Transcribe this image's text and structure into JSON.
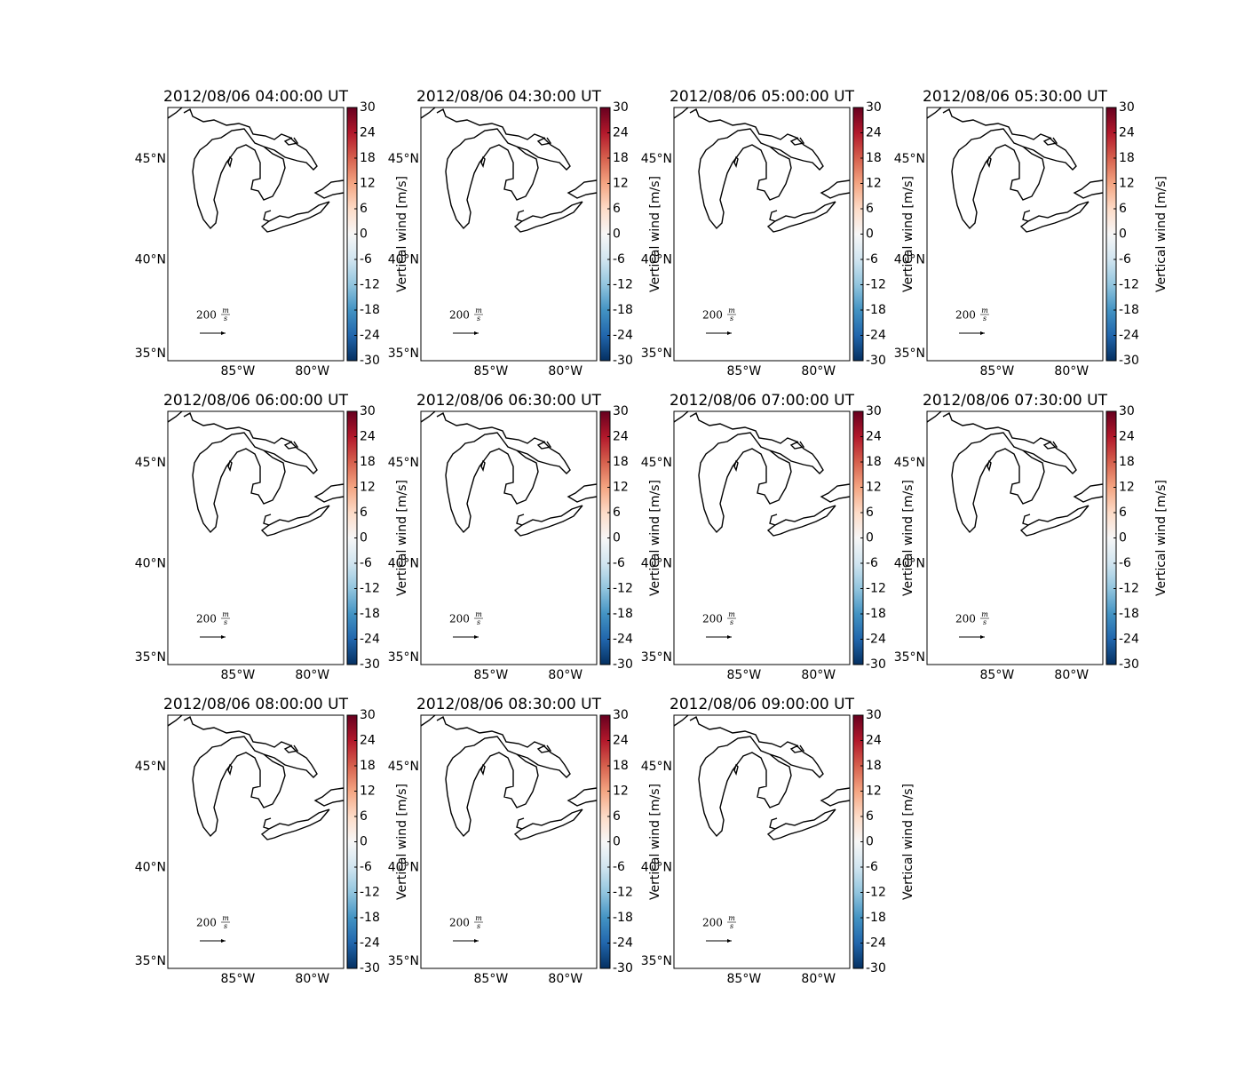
{
  "chart_data": [
    {
      "type": "map",
      "title": "2012/08/06 04:00:00 UT",
      "xlim": [
        -89.7,
        -77.9
      ],
      "ylim": [
        34.6,
        47.4
      ],
      "xticks": [
        {
          "value": -85,
          "label": "85°W"
        },
        {
          "value": -80,
          "label": "80°W"
        }
      ],
      "yticks": [
        {
          "value": 35,
          "label": "35°N"
        },
        {
          "value": 40,
          "label": "40°N"
        },
        {
          "value": 45,
          "label": "45°N"
        }
      ],
      "colorbar": {
        "label": "Vertical wind [m/s]",
        "lim": [
          -30,
          30
        ],
        "ticks": [
          -30,
          -24,
          -18,
          -12,
          -6,
          0,
          6,
          12,
          18,
          24,
          30
        ],
        "colors": [
          "#053061",
          "#2166ac",
          "#4393c3",
          "#92c5de",
          "#d1e5f0",
          "#f7f7f7",
          "#fddbc7",
          "#f4a582",
          "#d6604d",
          "#b2182b",
          "#67001f"
        ]
      },
      "quiver_key": {
        "value": 200,
        "numerator": "m",
        "denominator": "s"
      }
    },
    {
      "type": "map",
      "title": "2012/08/06 04:30:00 UT",
      "xlim": [
        -89.7,
        -77.9
      ],
      "ylim": [
        34.6,
        47.4
      ],
      "xticks": [
        {
          "value": -85,
          "label": "85°W"
        },
        {
          "value": -80,
          "label": "80°W"
        }
      ],
      "yticks": [
        {
          "value": 35,
          "label": "35°N"
        },
        {
          "value": 40,
          "label": "40°N"
        },
        {
          "value": 45,
          "label": "45°N"
        }
      ],
      "colorbar": {
        "label": "Vertical wind [m/s]",
        "lim": [
          -30,
          30
        ],
        "ticks": [
          -30,
          -24,
          -18,
          -12,
          -6,
          0,
          6,
          12,
          18,
          24,
          30
        ],
        "colors": [
          "#053061",
          "#2166ac",
          "#4393c3",
          "#92c5de",
          "#d1e5f0",
          "#f7f7f7",
          "#fddbc7",
          "#f4a582",
          "#d6604d",
          "#b2182b",
          "#67001f"
        ]
      },
      "quiver_key": {
        "value": 200,
        "numerator": "m",
        "denominator": "s"
      }
    },
    {
      "type": "map",
      "title": "2012/08/06 05:00:00 UT",
      "xlim": [
        -89.7,
        -77.9
      ],
      "ylim": [
        34.6,
        47.4
      ],
      "xticks": [
        {
          "value": -85,
          "label": "85°W"
        },
        {
          "value": -80,
          "label": "80°W"
        }
      ],
      "yticks": [
        {
          "value": 35,
          "label": "35°N"
        },
        {
          "value": 40,
          "label": "40°N"
        },
        {
          "value": 45,
          "label": "45°N"
        }
      ],
      "colorbar": {
        "label": "Vertical wind [m/s]",
        "lim": [
          -30,
          30
        ],
        "ticks": [
          -30,
          -24,
          -18,
          -12,
          -6,
          0,
          6,
          12,
          18,
          24,
          30
        ],
        "colors": [
          "#053061",
          "#2166ac",
          "#4393c3",
          "#92c5de",
          "#d1e5f0",
          "#f7f7f7",
          "#fddbc7",
          "#f4a582",
          "#d6604d",
          "#b2182b",
          "#67001f"
        ]
      },
      "quiver_key": {
        "value": 200,
        "numerator": "m",
        "denominator": "s"
      }
    },
    {
      "type": "map",
      "title": "2012/08/06 05:30:00 UT",
      "xlim": [
        -89.7,
        -77.9
      ],
      "ylim": [
        34.6,
        47.4
      ],
      "xticks": [
        {
          "value": -85,
          "label": "85°W"
        },
        {
          "value": -80,
          "label": "80°W"
        }
      ],
      "yticks": [
        {
          "value": 35,
          "label": "35°N"
        },
        {
          "value": 40,
          "label": "40°N"
        },
        {
          "value": 45,
          "label": "45°N"
        }
      ],
      "colorbar": {
        "label": "Vertical wind [m/s]",
        "lim": [
          -30,
          30
        ],
        "ticks": [
          -30,
          -24,
          -18,
          -12,
          -6,
          0,
          6,
          12,
          18,
          24,
          30
        ],
        "colors": [
          "#053061",
          "#2166ac",
          "#4393c3",
          "#92c5de",
          "#d1e5f0",
          "#f7f7f7",
          "#fddbc7",
          "#f4a582",
          "#d6604d",
          "#b2182b",
          "#67001f"
        ]
      },
      "quiver_key": {
        "value": 200,
        "numerator": "m",
        "denominator": "s"
      }
    },
    {
      "type": "map",
      "title": "2012/08/06 06:00:00 UT",
      "xlim": [
        -89.7,
        -77.9
      ],
      "ylim": [
        34.6,
        47.4
      ],
      "xticks": [
        {
          "value": -85,
          "label": "85°W"
        },
        {
          "value": -80,
          "label": "80°W"
        }
      ],
      "yticks": [
        {
          "value": 35,
          "label": "35°N"
        },
        {
          "value": 40,
          "label": "40°N"
        },
        {
          "value": 45,
          "label": "45°N"
        }
      ],
      "colorbar": {
        "label": "Vertical wind [m/s]",
        "lim": [
          -30,
          30
        ],
        "ticks": [
          -30,
          -24,
          -18,
          -12,
          -6,
          0,
          6,
          12,
          18,
          24,
          30
        ],
        "colors": [
          "#053061",
          "#2166ac",
          "#4393c3",
          "#92c5de",
          "#d1e5f0",
          "#f7f7f7",
          "#fddbc7",
          "#f4a582",
          "#d6604d",
          "#b2182b",
          "#67001f"
        ]
      },
      "quiver_key": {
        "value": 200,
        "numerator": "m",
        "denominator": "s"
      }
    },
    {
      "type": "map",
      "title": "2012/08/06 06:30:00 UT",
      "xlim": [
        -89.7,
        -77.9
      ],
      "ylim": [
        34.6,
        47.4
      ],
      "xticks": [
        {
          "value": -85,
          "label": "85°W"
        },
        {
          "value": -80,
          "label": "80°W"
        }
      ],
      "yticks": [
        {
          "value": 35,
          "label": "35°N"
        },
        {
          "value": 40,
          "label": "40°N"
        },
        {
          "value": 45,
          "label": "45°N"
        }
      ],
      "colorbar": {
        "label": "Vertical wind [m/s]",
        "lim": [
          -30,
          30
        ],
        "ticks": [
          -30,
          -24,
          -18,
          -12,
          -6,
          0,
          6,
          12,
          18,
          24,
          30
        ],
        "colors": [
          "#053061",
          "#2166ac",
          "#4393c3",
          "#92c5de",
          "#d1e5f0",
          "#f7f7f7",
          "#fddbc7",
          "#f4a582",
          "#d6604d",
          "#b2182b",
          "#67001f"
        ]
      },
      "quiver_key": {
        "value": 200,
        "numerator": "m",
        "denominator": "s"
      }
    },
    {
      "type": "map",
      "title": "2012/08/06 07:00:00 UT",
      "xlim": [
        -89.7,
        -77.9
      ],
      "ylim": [
        34.6,
        47.4
      ],
      "xticks": [
        {
          "value": -85,
          "label": "85°W"
        },
        {
          "value": -80,
          "label": "80°W"
        }
      ],
      "yticks": [
        {
          "value": 35,
          "label": "35°N"
        },
        {
          "value": 40,
          "label": "40°N"
        },
        {
          "value": 45,
          "label": "45°N"
        }
      ],
      "colorbar": {
        "label": "Vertical wind [m/s]",
        "lim": [
          -30,
          30
        ],
        "ticks": [
          -30,
          -24,
          -18,
          -12,
          -6,
          0,
          6,
          12,
          18,
          24,
          30
        ],
        "colors": [
          "#053061",
          "#2166ac",
          "#4393c3",
          "#92c5de",
          "#d1e5f0",
          "#f7f7f7",
          "#fddbc7",
          "#f4a582",
          "#d6604d",
          "#b2182b",
          "#67001f"
        ]
      },
      "quiver_key": {
        "value": 200,
        "numerator": "m",
        "denominator": "s"
      }
    },
    {
      "type": "map",
      "title": "2012/08/06 07:30:00 UT",
      "xlim": [
        -89.7,
        -77.9
      ],
      "ylim": [
        34.6,
        47.4
      ],
      "xticks": [
        {
          "value": -85,
          "label": "85°W"
        },
        {
          "value": -80,
          "label": "80°W"
        }
      ],
      "yticks": [
        {
          "value": 35,
          "label": "35°N"
        },
        {
          "value": 40,
          "label": "40°N"
        },
        {
          "value": 45,
          "label": "45°N"
        }
      ],
      "colorbar": {
        "label": "Vertical wind [m/s]",
        "lim": [
          -30,
          30
        ],
        "ticks": [
          -30,
          -24,
          -18,
          -12,
          -6,
          0,
          6,
          12,
          18,
          24,
          30
        ],
        "colors": [
          "#053061",
          "#2166ac",
          "#4393c3",
          "#92c5de",
          "#d1e5f0",
          "#f7f7f7",
          "#fddbc7",
          "#f4a582",
          "#d6604d",
          "#b2182b",
          "#67001f"
        ]
      },
      "quiver_key": {
        "value": 200,
        "numerator": "m",
        "denominator": "s"
      }
    },
    {
      "type": "map",
      "title": "2012/08/06 08:00:00 UT",
      "xlim": [
        -89.7,
        -77.9
      ],
      "ylim": [
        34.6,
        47.4
      ],
      "xticks": [
        {
          "value": -85,
          "label": "85°W"
        },
        {
          "value": -80,
          "label": "80°W"
        }
      ],
      "yticks": [
        {
          "value": 35,
          "label": "35°N"
        },
        {
          "value": 40,
          "label": "40°N"
        },
        {
          "value": 45,
          "label": "45°N"
        }
      ],
      "colorbar": {
        "label": "Vertical wind [m/s]",
        "lim": [
          -30,
          30
        ],
        "ticks": [
          -30,
          -24,
          -18,
          -12,
          -6,
          0,
          6,
          12,
          18,
          24,
          30
        ],
        "colors": [
          "#053061",
          "#2166ac",
          "#4393c3",
          "#92c5de",
          "#d1e5f0",
          "#f7f7f7",
          "#fddbc7",
          "#f4a582",
          "#d6604d",
          "#b2182b",
          "#67001f"
        ]
      },
      "quiver_key": {
        "value": 200,
        "numerator": "m",
        "denominator": "s"
      }
    },
    {
      "type": "map",
      "title": "2012/08/06 08:30:00 UT",
      "xlim": [
        -89.7,
        -77.9
      ],
      "ylim": [
        34.6,
        47.4
      ],
      "xticks": [
        {
          "value": -85,
          "label": "85°W"
        },
        {
          "value": -80,
          "label": "80°W"
        }
      ],
      "yticks": [
        {
          "value": 35,
          "label": "35°N"
        },
        {
          "value": 40,
          "label": "40°N"
        },
        {
          "value": 45,
          "label": "45°N"
        }
      ],
      "colorbar": {
        "label": "Vertical wind [m/s]",
        "lim": [
          -30,
          30
        ],
        "ticks": [
          -30,
          -24,
          -18,
          -12,
          -6,
          0,
          6,
          12,
          18,
          24,
          30
        ],
        "colors": [
          "#053061",
          "#2166ac",
          "#4393c3",
          "#92c5de",
          "#d1e5f0",
          "#f7f7f7",
          "#fddbc7",
          "#f4a582",
          "#d6604d",
          "#b2182b",
          "#67001f"
        ]
      },
      "quiver_key": {
        "value": 200,
        "numerator": "m",
        "denominator": "s"
      }
    },
    {
      "type": "map",
      "title": "2012/08/06 09:00:00 UT",
      "xlim": [
        -89.7,
        -77.9
      ],
      "ylim": [
        34.6,
        47.4
      ],
      "xticks": [
        {
          "value": -85,
          "label": "85°W"
        },
        {
          "value": -80,
          "label": "80°W"
        }
      ],
      "yticks": [
        {
          "value": 35,
          "label": "35°N"
        },
        {
          "value": 40,
          "label": "40°N"
        },
        {
          "value": 45,
          "label": "45°N"
        }
      ],
      "colorbar": {
        "label": "Vertical wind [m/s]",
        "lim": [
          -30,
          30
        ],
        "ticks": [
          -30,
          -24,
          -18,
          -12,
          -6,
          0,
          6,
          12,
          18,
          24,
          30
        ],
        "colors": [
          "#053061",
          "#2166ac",
          "#4393c3",
          "#92c5de",
          "#d1e5f0",
          "#f7f7f7",
          "#fddbc7",
          "#f4a582",
          "#d6604d",
          "#b2182b",
          "#67001f"
        ]
      },
      "quiver_key": {
        "value": 200,
        "numerator": "m",
        "denominator": "s"
      }
    }
  ]
}
